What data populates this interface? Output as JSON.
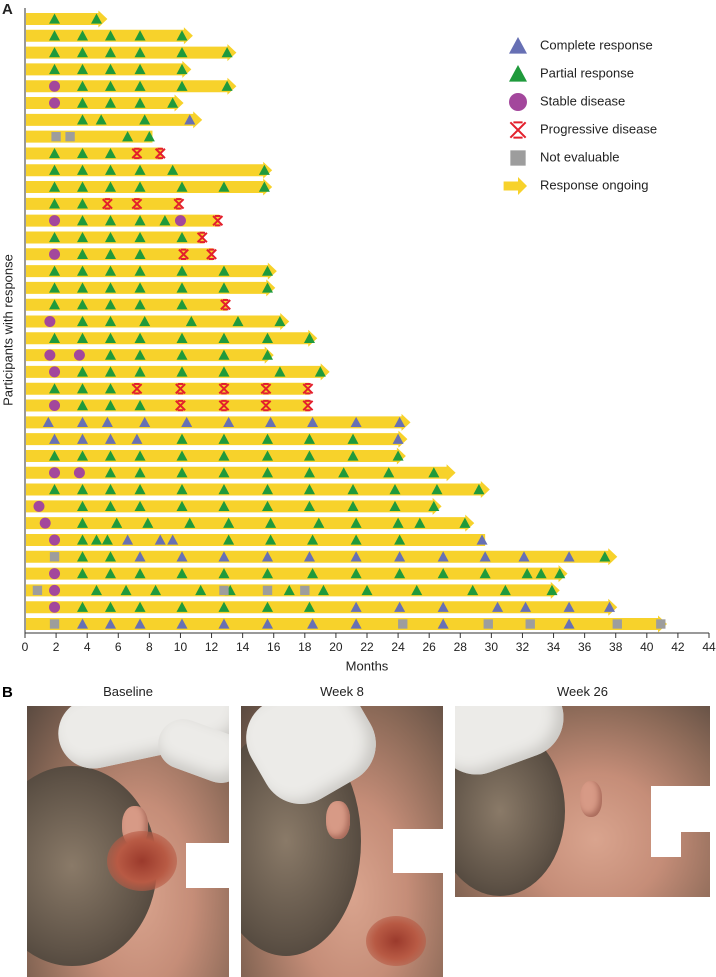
{
  "panel_labels": [
    "A",
    "B"
  ],
  "chart_data": {
    "type": "swimmer",
    "y_label": "Participants with response",
    "x_label": "Months",
    "xlim": [
      0,
      44
    ],
    "xticks": [
      0,
      2,
      4,
      6,
      8,
      10,
      12,
      14,
      16,
      18,
      20,
      22,
      24,
      26,
      28,
      30,
      32,
      34,
      36,
      38,
      40,
      42,
      44
    ],
    "bar_color": "#f7d22b",
    "categories": [
      null,
      null,
      null,
      null,
      null,
      null,
      null,
      null,
      null,
      null,
      null,
      null,
      null,
      null,
      null,
      null,
      null,
      null,
      null,
      null,
      null,
      null,
      null,
      null,
      null,
      null,
      null,
      null,
      null,
      null,
      null,
      null,
      null,
      null,
      null,
      null,
      null
    ],
    "durations": [
      5.3,
      10.8,
      13.6,
      10.7,
      13.6,
      10.2,
      11.4,
      8.2,
      8.8,
      15.9,
      15.9,
      10.0,
      12.5,
      11.5,
      12.1,
      16.2,
      16.1,
      13.0,
      17.0,
      18.8,
      16.0,
      19.6,
      18.3,
      18.3,
      24.8,
      24.6,
      24.5,
      27.7,
      29.9,
      26.8,
      28.9,
      29.6,
      38.1,
      34.9,
      34.4,
      38.1,
      41.3
    ],
    "series": [
      {
        "name": "Complete response",
        "color": "#6770b4",
        "marker": "triangle",
        "values": [
          [],
          [],
          [],
          [],
          [],
          [],
          [
            10.6
          ],
          [],
          [],
          [],
          [],
          [],
          [],
          [],
          [],
          [],
          [],
          [],
          [],
          [],
          [],
          [],
          [],
          [],
          [
            1.5,
            3.7,
            5.3,
            7.7,
            10.4,
            13.1,
            15.8,
            18.5,
            21.3,
            24.1
          ],
          [
            1.9,
            3.7,
            5.5,
            7.2,
            24.0
          ],
          [],
          [],
          [],
          [],
          [],
          [
            6.6,
            8.7,
            9.5,
            29.4
          ],
          [
            7.4,
            10.1,
            12.8,
            15.6,
            18.3,
            21.3,
            24.1,
            26.9,
            29.6,
            32.1,
            35.0
          ],
          [],
          [],
          [
            21.3,
            24.1,
            26.9,
            30.4,
            32.2,
            35.0,
            37.6
          ],
          [
            3.7,
            5.5,
            7.4,
            10.1,
            12.8,
            15.6,
            18.5,
            21.3,
            26.9,
            35.0
          ]
        ]
      },
      {
        "name": "Partial response",
        "color": "#1f9a3c",
        "marker": "triangle",
        "values": [
          [
            1.9,
            4.6
          ],
          [
            1.9,
            3.7,
            5.5,
            7.4,
            10.1
          ],
          [
            1.9,
            3.7,
            5.5,
            7.4,
            10.1,
            13.0
          ],
          [
            1.9,
            3.7,
            5.5,
            7.4,
            10.1
          ],
          [
            3.7,
            5.5,
            7.4,
            10.1,
            13.0
          ],
          [
            3.7,
            5.5,
            7.4,
            9.5
          ],
          [
            3.7,
            4.9,
            7.7
          ],
          [
            6.6,
            8.0
          ],
          [
            1.9,
            3.7,
            5.5
          ],
          [
            1.9,
            3.7,
            5.5,
            7.4,
            9.5,
            15.4
          ],
          [
            1.9,
            3.7,
            5.5,
            7.4,
            10.1,
            12.8,
            15.4
          ],
          [
            1.9,
            3.7
          ],
          [
            3.7,
            5.5,
            7.4,
            9.0
          ],
          [
            1.9,
            3.7,
            5.5,
            7.4,
            10.1
          ],
          [
            3.7,
            5.5,
            7.4
          ],
          [
            1.9,
            3.7,
            5.5,
            7.4,
            10.1,
            12.8,
            15.6
          ],
          [
            1.9,
            3.7,
            5.5,
            7.4,
            10.1,
            12.8,
            15.6
          ],
          [
            1.9,
            3.7,
            5.5,
            7.4,
            10.1
          ],
          [
            3.7,
            5.5,
            7.7,
            10.7,
            13.7,
            16.4
          ],
          [
            1.9,
            3.7,
            5.5,
            7.4,
            10.1,
            12.8,
            15.6,
            18.3
          ],
          [
            5.5,
            7.4,
            10.1,
            12.8,
            15.6
          ],
          [
            3.7,
            5.5,
            7.4,
            10.1,
            12.8,
            16.4,
            19.0
          ],
          [
            1.9,
            3.7,
            5.5
          ],
          [
            3.7,
            5.5,
            7.4
          ],
          [],
          [
            10.1,
            12.8,
            15.6,
            18.3,
            21.1
          ],
          [
            1.9,
            3.7,
            5.5,
            7.4,
            10.1,
            12.8,
            15.6,
            18.3,
            21.1,
            24.0
          ],
          [
            5.5,
            7.4,
            10.1,
            12.8,
            15.6,
            18.3,
            20.5,
            23.4,
            26.3
          ],
          [
            1.9,
            3.7,
            5.5,
            7.4,
            10.1,
            12.8,
            15.6,
            18.3,
            21.1,
            23.8,
            26.5,
            29.2
          ],
          [
            3.7,
            5.5,
            7.4,
            10.1,
            12.8,
            15.6,
            18.3,
            21.1,
            23.8,
            26.3
          ],
          [
            3.7,
            5.9,
            7.9,
            10.6,
            13.1,
            15.8,
            18.9,
            21.3,
            24.0,
            25.4,
            28.3
          ],
          [
            3.7,
            4.6,
            5.3,
            13.1,
            15.8,
            18.5,
            21.3,
            24.1
          ],
          [
            3.7,
            5.5,
            37.3
          ],
          [
            3.7,
            5.5,
            7.4,
            10.1,
            12.8,
            15.6,
            18.5,
            21.3,
            24.1,
            26.9,
            29.6,
            32.3,
            33.2,
            34.4
          ],
          [
            4.6,
            6.5,
            8.4,
            11.3,
            13.2,
            17.0,
            19.2,
            22.0,
            25.2,
            28.8,
            30.9,
            33.9
          ],
          [
            3.7,
            5.5,
            7.4,
            10.1,
            12.8,
            15.6,
            18.3
          ],
          []
        ]
      },
      {
        "name": "Stable disease",
        "color": "#a3479c",
        "marker": "circle",
        "values": [
          [],
          [],
          [],
          [],
          [
            1.9
          ],
          [
            1.9
          ],
          [],
          [],
          [],
          [],
          [],
          [],
          [
            1.9,
            10.0
          ],
          [],
          [
            1.9
          ],
          [],
          [],
          [],
          [
            1.6
          ],
          [],
          [
            1.6,
            3.5
          ],
          [
            1.9
          ],
          [],
          [
            1.9
          ],
          [],
          [],
          [],
          [
            1.9,
            3.5
          ],
          [],
          [
            0.9
          ],
          [
            1.3
          ],
          [
            1.9
          ],
          [],
          [
            1.9
          ],
          [
            1.9
          ],
          [
            1.9
          ],
          []
        ]
      },
      {
        "name": "Progressive disease",
        "color": "#e3202c",
        "marker": "cross",
        "values": [
          [],
          [],
          [],
          [],
          [],
          [],
          [],
          [],
          [
            7.2,
            8.7
          ],
          [],
          [],
          [
            5.3,
            7.2,
            9.9
          ],
          [
            12.4
          ],
          [
            11.4
          ],
          [
            10.2,
            12.0
          ],
          [],
          [],
          [
            12.9
          ],
          [],
          [],
          [],
          [],
          [
            7.2,
            10.0,
            12.8,
            15.5,
            18.2
          ],
          [
            10.0,
            12.8,
            15.5,
            18.2
          ],
          [],
          [],
          [],
          [],
          [],
          [],
          [],
          [],
          [],
          [],
          [],
          [],
          []
        ]
      },
      {
        "name": "Not evaluable",
        "color": "#9d9d9d",
        "marker": "square",
        "values": [
          [],
          [],
          [],
          [],
          [],
          [],
          [],
          [
            2.0,
            2.9
          ],
          [],
          [],
          [],
          [],
          [],
          [],
          [],
          [],
          [],
          [],
          [],
          [],
          [],
          [],
          [],
          [],
          [],
          [],
          [],
          [],
          [],
          [],
          [],
          [],
          [
            1.9
          ],
          [],
          [
            0.8,
            12.8,
            15.6,
            18.0
          ],
          [],
          [
            1.9,
            24.3,
            29.8,
            32.5,
            38.1,
            40.9
          ]
        ]
      },
      {
        "name": "Response ongoing",
        "color": "#f7d22b",
        "marker": "arrow",
        "values": [
          true,
          true,
          true,
          true,
          true,
          true,
          true,
          false,
          false,
          true,
          true,
          false,
          false,
          false,
          false,
          true,
          true,
          false,
          true,
          true,
          true,
          true,
          false,
          false,
          true,
          true,
          true,
          true,
          true,
          true,
          true,
          false,
          true,
          true,
          true,
          true,
          true
        ]
      }
    ]
  },
  "photos": {
    "captions": [
      "Baseline",
      "Week 8",
      "Week 26"
    ]
  }
}
